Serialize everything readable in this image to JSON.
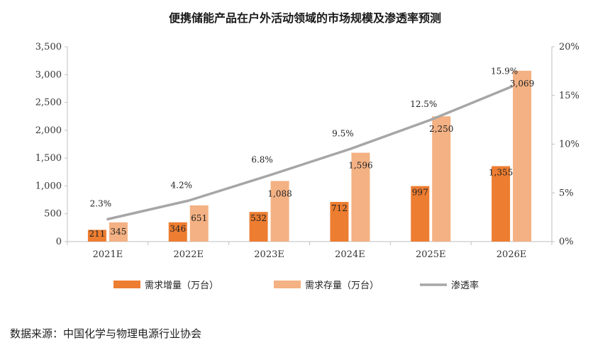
{
  "title": "便携储能产品在户外活动领域的市场规模及渗透率预测",
  "source": "数据来源：中国化学与物理电源行业协会",
  "colors": {
    "increment": "#ED7D31",
    "stock": "#F4B183",
    "penetration": "#A6A6A6",
    "axis": "#BFBFBF"
  },
  "chart_data": {
    "type": "bar",
    "categories": [
      "2021E",
      "2022E",
      "2023E",
      "2024E",
      "2025E",
      "2026E"
    ],
    "series": [
      {
        "name": "需求增量（万台）",
        "type": "bar",
        "axis": "left",
        "values": [
          211,
          346,
          532,
          712,
          997,
          1355
        ],
        "labels": [
          "211",
          "346",
          "532",
          "712",
          "997",
          "1,355"
        ]
      },
      {
        "name": "需求存量（万台）",
        "type": "bar",
        "axis": "left",
        "values": [
          345,
          651,
          1088,
          1596,
          2250,
          3069
        ],
        "labels": [
          "345",
          "651",
          "1,088",
          "1,596",
          "2,250",
          "3,069"
        ]
      },
      {
        "name": "渗透率",
        "type": "line",
        "axis": "right",
        "values": [
          2.3,
          4.2,
          6.8,
          9.5,
          12.5,
          15.9
        ],
        "labels": [
          "2.3%",
          "4.2%",
          "6.8%",
          "9.5%",
          "12.5%",
          "15.9%"
        ]
      }
    ],
    "left_axis": {
      "ylim": [
        0,
        3500
      ],
      "ticks": [
        "0",
        "500",
        "1,000",
        "1,500",
        "2,000",
        "2,500",
        "3,000",
        "3,500"
      ]
    },
    "right_axis": {
      "ylim": [
        0,
        20
      ],
      "ticks": [
        "0%",
        "5%",
        "10%",
        "15%",
        "20%"
      ]
    },
    "grid": false,
    "legend_position": "bottom"
  }
}
